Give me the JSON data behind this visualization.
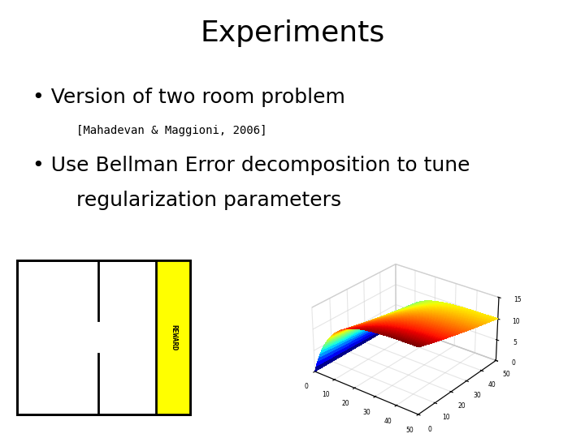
{
  "title": "Experiments",
  "title_fontsize": 26,
  "title_fontfamily": "sans-serif",
  "bullet1": "Version of two room problem",
  "bullet1_fontsize": 18,
  "citation": "[Mahadevan & Maggioni, 2006]",
  "citation_fontsize": 10,
  "citation_fontfamily": "monospace",
  "bullet2_line1": "Use Bellman Error decomposition to tune",
  "bullet2_line2": "regularization parameters",
  "bullet2_fontsize": 18,
  "background_color": "#ffffff",
  "text_color": "#000000",
  "room_box_color": "#000000",
  "reward_color": "#ffff00",
  "surface_zlim": [
    0,
    15
  ],
  "surface_xlim": [
    0,
    50
  ],
  "surface_ylim": [
    0,
    50
  ],
  "surface_zticks": [
    0,
    5,
    10,
    15
  ],
  "surface_xyticks": [
    0,
    10,
    20,
    30,
    40,
    50
  ],
  "view_elev": 28,
  "view_azim": -52
}
